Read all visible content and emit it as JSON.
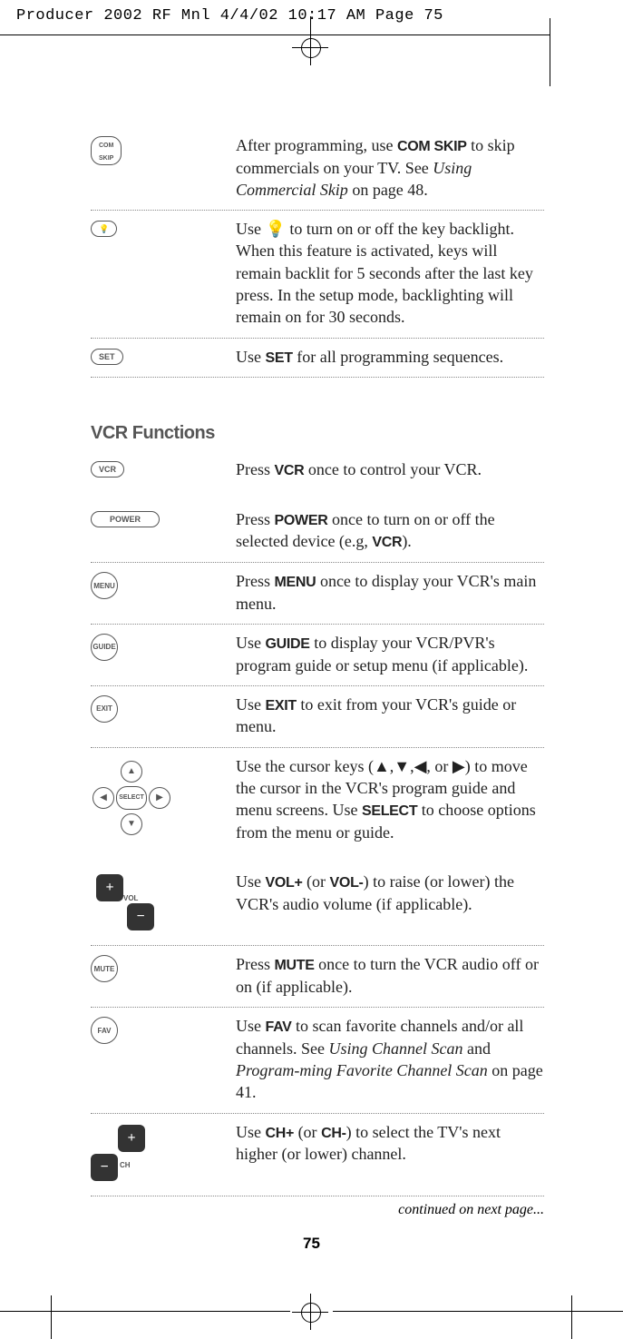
{
  "print_header": "Producer 2002 RF Mnl  4/4/02  10:17 AM  Page 75",
  "page_number": "75",
  "continued": "continued on next page...",
  "section_title": "VCR Functions",
  "top_rows": [
    {
      "icon_label": "COM\nSKIP",
      "icon_type": "oval",
      "desc_parts": [
        "After programming, use ",
        "COM SKIP",
        " to skip commercials on your TV. See ",
        "Using Commercial Skip",
        " on page 48."
      ],
      "desc_styles": [
        "",
        "bold",
        "",
        "ital",
        ""
      ]
    },
    {
      "icon_label": "💡",
      "icon_type": "oval",
      "desc_parts": [
        "Use ",
        "💡",
        " to turn on or off the key backlight. When this feature is activated, keys will remain backlit for 5 seconds after the last key press. In the setup mode, backlighting will remain on for 30 seconds."
      ],
      "desc_styles": [
        "",
        "",
        ""
      ]
    },
    {
      "icon_label": "SET",
      "icon_type": "oval",
      "desc_parts": [
        "Use ",
        "SET",
        " for all programming sequences."
      ],
      "desc_styles": [
        "",
        "bold",
        ""
      ]
    }
  ],
  "vcr_rows": [
    {
      "icon_label": "VCR",
      "icon_type": "oval",
      "plain": true,
      "desc_parts": [
        "Press ",
        "VCR",
        " once to control your VCR."
      ],
      "desc_styles": [
        "",
        "bold",
        ""
      ]
    },
    {
      "icon_label": "POWER",
      "icon_type": "oval-wide",
      "desc_parts": [
        "Press ",
        "POWER",
        " once to turn on or off the selected device (e.g, ",
        "VCR",
        ")."
      ],
      "desc_styles": [
        "",
        "bold",
        "",
        "bold",
        ""
      ]
    },
    {
      "icon_label": "MENU",
      "icon_type": "circle",
      "desc_parts": [
        "Press ",
        "MENU",
        " once to display your VCR's main menu."
      ],
      "desc_styles": [
        "",
        "bold",
        ""
      ]
    },
    {
      "icon_label": "GUIDE",
      "icon_type": "circle",
      "desc_parts": [
        "Use ",
        "GUIDE",
        " to display your VCR/PVR's program guide or setup menu (if applicable)."
      ],
      "desc_styles": [
        "",
        "bold",
        ""
      ]
    },
    {
      "icon_label": "EXIT",
      "icon_type": "circle",
      "desc_parts": [
        "Use ",
        "EXIT",
        " to exit from your VCR's guide or menu."
      ],
      "desc_styles": [
        "",
        "bold",
        ""
      ]
    },
    {
      "icon_label": "SELECT",
      "icon_type": "cursor",
      "plain": true,
      "desc_parts": [
        "Use the cursor keys (▲,▼,◀, or ▶) to move the cursor in the VCR's program guide and menu screens. Use ",
        "SELECT",
        " to choose options from the menu or guide."
      ],
      "desc_styles": [
        "",
        "bold",
        ""
      ]
    },
    {
      "icon_label": "VOL",
      "icon_type": "vol",
      "desc_parts": [
        "Use ",
        "VOL+",
        " (or ",
        "VOL-",
        ") to raise (or lower) the VCR's audio volume (if applicable)."
      ],
      "desc_styles": [
        "",
        "bold",
        "",
        "bold",
        ""
      ]
    },
    {
      "icon_label": "MUTE",
      "icon_type": "circle",
      "desc_parts": [
        "Press ",
        "MUTE",
        " once to turn the VCR audio off or on (if applicable)."
      ],
      "desc_styles": [
        "",
        "bold",
        ""
      ]
    },
    {
      "icon_label": "FAV",
      "icon_type": "circle",
      "desc_parts": [
        "Use ",
        "FAV",
        " to scan favorite channels and/or all channels. See ",
        "Using Channel Scan",
        " and ",
        "Program-ming Favorite Channel Scan",
        " on page 41."
      ],
      "desc_styles": [
        "",
        "bold",
        "",
        "ital",
        "",
        "ital",
        ""
      ]
    },
    {
      "icon_label": "CH",
      "icon_type": "ch",
      "desc_parts": [
        "Use ",
        "CH+",
        " (or ",
        "CH-",
        ") to select the TV's next higher (or lower) channel."
      ],
      "desc_styles": [
        "",
        "bold",
        "",
        "bold",
        ""
      ]
    }
  ]
}
